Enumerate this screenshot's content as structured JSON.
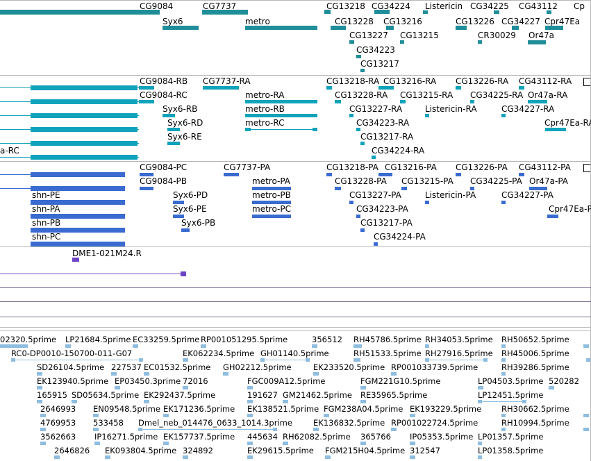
{
  "colors": {
    "genes": "#208e99",
    "transcripts_ra": "#11a3bb",
    "transcripts_pa": "#3a6bd0",
    "reagent": "#6d43c4",
    "ests": "#8fbde0",
    "separator": "#b8b8b8",
    "track_line": "#7b6a8e"
  },
  "track_genes": {
    "labels": [
      "CG9084",
      "CG7737",
      "CG13218",
      "CG34224",
      "Listericin",
      "CG34225",
      "CG43112",
      "Cp",
      "Syx6",
      "metro",
      "CG13228",
      "CG13216",
      "CG13226",
      "CG34227",
      "Cpr47Ea",
      "CG13227",
      "CG13215",
      "CR30029",
      "Or47a",
      "CG34223",
      "CG13217"
    ]
  },
  "track_transcripts_ra": {
    "labels": [
      "CG9084-RB",
      "CG7737-RA",
      "CG13218-RA",
      "CG13216-RA",
      "CG13226-RA",
      "CG43112-RA",
      "CG9084-RC",
      "metro-RA",
      "CG13228-RA",
      "CG13215-RA",
      "CG34225-RA",
      "Or47a-RA",
      "Syx6-RB",
      "metro-RB",
      "CG13227-RA",
      "Listericin-RA",
      "CG34227-RA",
      "Syx6-RD",
      "metro-RC",
      "CG34223-RA",
      "Cpr47Ea-RA",
      "Syx6-RE",
      "CG13217-RA",
      "a-RC",
      "CG34224-RA"
    ]
  },
  "track_transcripts_pa": {
    "labels": [
      "CG9084-PC",
      "CG7737-PA",
      "CG13218-PA",
      "CG13216-PA",
      "CG13226-PA",
      "CG43112-PA",
      "CG9084-PB",
      "metro-PA",
      "CG13228-PA",
      "CG13215-PA",
      "CG34225-PA",
      "Or47a-PA",
      "shn-PE",
      "Syx6-PD",
      "metro-PB",
      "CG13227-PA",
      "Listericin-PA",
      "CG34227-PA",
      "shn-PA",
      "Syx6-PE",
      "metro-PC",
      "CG34223-PA",
      "Cpr47Ea-P",
      "shn-PB",
      "Syx6-PB",
      "CG13217-PA",
      "shn-PC",
      "CG34224-PA"
    ]
  },
  "track_reagent": {
    "labels": [
      "DME1-021M24.R"
    ]
  },
  "track_ests": {
    "labels": [
      "02320.5prime",
      "LP21684.5prime",
      "EC33259.5prime",
      "RP001051295.5prime",
      "356512",
      "RH45786.5prime",
      "RH34053.5prime",
      "RH50652.5prime",
      "RC0-DP0010-150700-011-G07",
      "EK062234.5prime",
      "GH01140.5prime",
      "RH51533.5prime",
      "RH27916.5prime",
      "RH45006.5prime",
      "SD26104.5prime",
      "227537",
      "EC01532.5prime",
      "GH02212.5prime",
      "EK233520.5prime",
      "RP001033739.5prime",
      "RH39286.5prime",
      "EK123940.5prime",
      "EP03450.3prime",
      "72016",
      "FGC009A12.5prime",
      "FGM221G10.5prime",
      "LP04503.5prime",
      "520282",
      "165915",
      "SD05634.5prime",
      "EK292437.5prime",
      "191627",
      "GM21462.5prime",
      "RE35965.5prime",
      "LP12451.5prime",
      "2646993",
      "EN09548.5prime",
      "EK171236.5prime",
      "EK138521.5prime",
      "FGM238A04.5prime",
      "EK193229.5prime",
      "RH30662.5prime",
      "4769953",
      "533458",
      "Dmel_neb_014476_0633_1014.3prime",
      "EK136832.5prime",
      "RP001022724.5prime",
      "RH10994.5prime",
      "3562663",
      "IP16271.5prime",
      "EK157737.5prime",
      "445634",
      "RH62082.5prime",
      "365766",
      "IP05353.5prime",
      "LP01357.5prime",
      "2646826",
      "EK093804.5prime",
      "324892",
      "EK29615.5prime",
      "FGM215H04.5prime",
      "312547",
      "LP01358.5prime"
    ]
  }
}
